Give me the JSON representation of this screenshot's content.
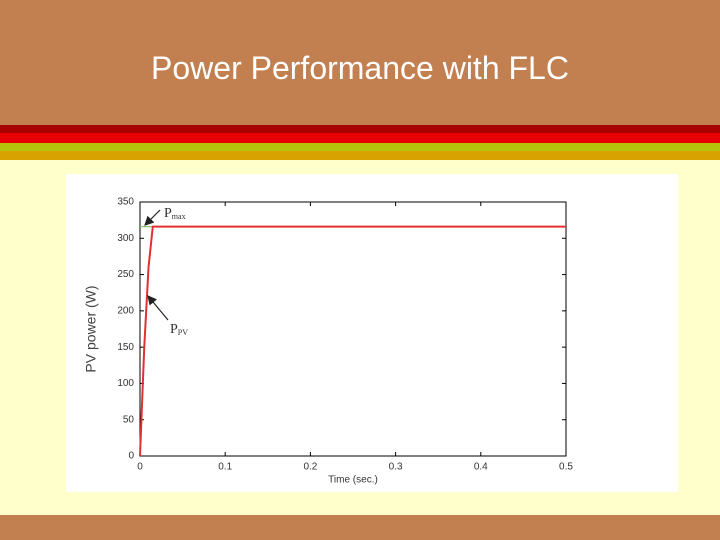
{
  "chart_data": {
    "type": "line",
    "title": "Power Performance with FLC",
    "x_label": "Time (sec.)",
    "y_label": "PV power (W)",
    "xlim": [
      0,
      0.5
    ],
    "xticks": [
      0,
      0.1,
      0.2,
      0.3,
      0.4,
      0.5
    ],
    "ylim": [
      0,
      350
    ],
    "yticks": [
      0,
      50,
      100,
      150,
      200,
      250,
      300,
      350
    ],
    "series": [
      {
        "color": "#7fbf5f",
        "x": [
          0,
          0.5
        ],
        "values": [
          316,
          316
        ]
      },
      {
        "color": "#e03030",
        "x": [
          0,
          0.002,
          0.005,
          0.01,
          0.015,
          0.5
        ],
        "values": [
          0,
          60,
          150,
          260,
          316,
          316
        ]
      }
    ],
    "annotations": [
      {
        "main": "P",
        "sub": "max"
      },
      {
        "main": "P",
        "sub": "PV"
      }
    ]
  }
}
